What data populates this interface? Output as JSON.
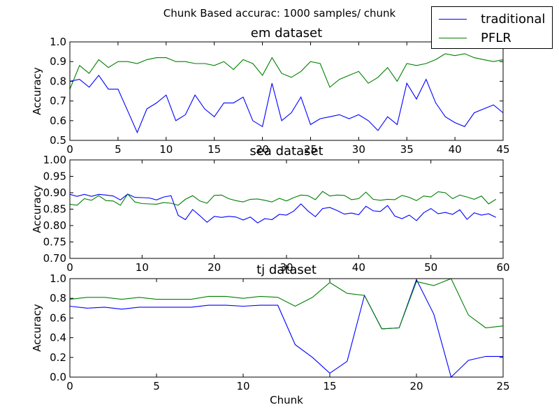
{
  "figure_title": "Chunk Based accurac: 1000 samples/ chunk",
  "legend": [
    {
      "label": "traditional",
      "color": "#0000ff"
    },
    {
      "label": "PFLR",
      "color": "#008000"
    }
  ],
  "chart_data": [
    {
      "type": "line",
      "title": "em dataset",
      "xlabel": "",
      "ylabel": "Accuracy",
      "xlim": [
        0,
        45
      ],
      "ylim": [
        0.5,
        1.0
      ],
      "xticks": [
        0,
        5,
        10,
        15,
        20,
        25,
        30,
        35,
        40,
        45
      ],
      "yticks": [
        0.5,
        0.6,
        0.7,
        0.8,
        0.9,
        1.0
      ],
      "xtick_labels": [
        "0",
        "5",
        "10",
        "15",
        "20",
        "25",
        "30",
        "35",
        "40",
        "45"
      ],
      "ytick_labels": [
        "0.5",
        "0.6",
        "0.7",
        "0.8",
        "0.9",
        "1.0"
      ],
      "series": [
        {
          "name": "traditional",
          "color": "#0000ff",
          "values": [
            0.8,
            0.81,
            0.77,
            0.83,
            0.76,
            0.76,
            0.65,
            0.54,
            0.66,
            0.69,
            0.73,
            0.6,
            0.63,
            0.73,
            0.66,
            0.62,
            0.69,
            0.69,
            0.72,
            0.6,
            0.57,
            0.79,
            0.6,
            0.64,
            0.72,
            0.58,
            0.61,
            0.62,
            0.63,
            0.61,
            0.63,
            0.6,
            0.55,
            0.62,
            0.58,
            0.79,
            0.71,
            0.81,
            0.69,
            0.62,
            0.59,
            0.57,
            0.64,
            0.66,
            0.68,
            0.64
          ]
        },
        {
          "name": "PFLR",
          "color": "#008000",
          "values": [
            0.76,
            0.88,
            0.84,
            0.91,
            0.87,
            0.9,
            0.9,
            0.89,
            0.91,
            0.92,
            0.92,
            0.9,
            0.9,
            0.89,
            0.89,
            0.88,
            0.9,
            0.86,
            0.91,
            0.89,
            0.83,
            0.92,
            0.84,
            0.82,
            0.85,
            0.9,
            0.89,
            0.77,
            0.81,
            0.83,
            0.85,
            0.79,
            0.82,
            0.87,
            0.8,
            0.89,
            0.88,
            0.89,
            0.91,
            0.94,
            0.93,
            0.94,
            0.92,
            0.91,
            0.9,
            0.91
          ]
        }
      ]
    },
    {
      "type": "line",
      "title": "sea dataset",
      "xlabel": "",
      "ylabel": "Accuracy",
      "xlim": [
        0,
        60
      ],
      "ylim": [
        0.7,
        1.0
      ],
      "xticks": [
        0,
        10,
        20,
        30,
        40,
        50,
        60
      ],
      "yticks": [
        0.7,
        0.75,
        0.8,
        0.85,
        0.9,
        0.95,
        1.0
      ],
      "xtick_labels": [
        "0",
        "10",
        "20",
        "30",
        "40",
        "50",
        "60"
      ],
      "ytick_labels": [
        "0.70",
        "0.75",
        "0.80",
        "0.85",
        "0.90",
        "0.95",
        "1.00"
      ],
      "series": [
        {
          "name": "traditional",
          "color": "#0000ff",
          "values": [
            0.895,
            0.889,
            0.895,
            0.889,
            0.895,
            0.893,
            0.89,
            0.878,
            0.896,
            0.886,
            0.885,
            0.884,
            0.878,
            0.887,
            0.891,
            0.831,
            0.818,
            0.849,
            0.83,
            0.81,
            0.828,
            0.825,
            0.828,
            0.826,
            0.817,
            0.826,
            0.808,
            0.821,
            0.818,
            0.834,
            0.832,
            0.844,
            0.866,
            0.844,
            0.827,
            0.852,
            0.855,
            0.846,
            0.835,
            0.838,
            0.833,
            0.859,
            0.845,
            0.843,
            0.861,
            0.829,
            0.821,
            0.832,
            0.815,
            0.839,
            0.852,
            0.836,
            0.84,
            0.834,
            0.848,
            0.819,
            0.839,
            0.832,
            0.836,
            0.825
          ]
        },
        {
          "name": "PFLR",
          "color": "#008000",
          "values": [
            0.865,
            0.862,
            0.882,
            0.877,
            0.891,
            0.876,
            0.875,
            0.862,
            0.896,
            0.872,
            0.867,
            0.866,
            0.865,
            0.87,
            0.868,
            0.862,
            0.88,
            0.891,
            0.875,
            0.868,
            0.892,
            0.893,
            0.882,
            0.876,
            0.872,
            0.88,
            0.881,
            0.877,
            0.872,
            0.883,
            0.875,
            0.885,
            0.893,
            0.891,
            0.879,
            0.904,
            0.89,
            0.893,
            0.892,
            0.879,
            0.882,
            0.902,
            0.88,
            0.877,
            0.88,
            0.879,
            0.892,
            0.886,
            0.876,
            0.89,
            0.887,
            0.903,
            0.9,
            0.882,
            0.893,
            0.887,
            0.88,
            0.89,
            0.866,
            0.88
          ]
        }
      ]
    },
    {
      "type": "line",
      "title": "tj dataset",
      "xlabel": "Chunk",
      "ylabel": "Accuracy",
      "xlim": [
        0,
        25
      ],
      "ylim": [
        0.0,
        1.0
      ],
      "xticks": [
        0,
        5,
        10,
        15,
        20,
        25
      ],
      "yticks": [
        0.0,
        0.2,
        0.4,
        0.6,
        0.8,
        1.0
      ],
      "xtick_labels": [
        "0",
        "5",
        "10",
        "15",
        "20",
        "25"
      ],
      "ytick_labels": [
        "0.0",
        "0.2",
        "0.4",
        "0.6",
        "0.8",
        "1.0"
      ],
      "series": [
        {
          "name": "traditional",
          "color": "#0000ff",
          "values": [
            0.72,
            0.7,
            0.71,
            0.69,
            0.71,
            0.71,
            0.71,
            0.71,
            0.73,
            0.73,
            0.72,
            0.73,
            0.73,
            0.33,
            0.2,
            0.04,
            0.16,
            0.83,
            0.49,
            0.5,
            0.99,
            0.64,
            0.0,
            0.17,
            0.21,
            0.21
          ]
        },
        {
          "name": "PFLR",
          "color": "#008000",
          "values": [
            0.79,
            0.81,
            0.81,
            0.79,
            0.81,
            0.79,
            0.79,
            0.79,
            0.82,
            0.82,
            0.8,
            0.82,
            0.81,
            0.72,
            0.81,
            0.96,
            0.85,
            0.83,
            0.49,
            0.5,
            0.97,
            0.93,
            1.0,
            0.63,
            0.5,
            0.52
          ]
        }
      ]
    }
  ]
}
